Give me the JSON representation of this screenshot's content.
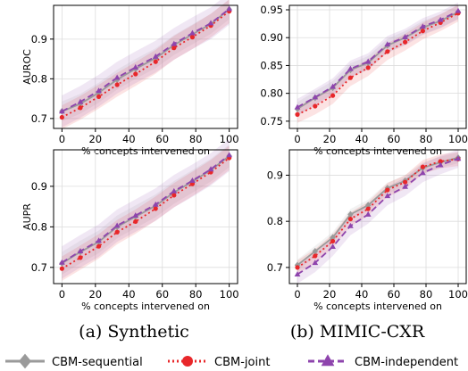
{
  "colors": {
    "sequential": "#9a9a9a",
    "joint": "#e8272a",
    "independent": "#8e44ad",
    "grid": "#dcdcdc"
  },
  "captions": [
    "(a) Synthetic",
    "(b) MIMIC-CXR"
  ],
  "legend": [
    {
      "label": "CBM-sequential",
      "marker": "diamond",
      "dash": "solid",
      "series": "sequential"
    },
    {
      "label": "CBM-joint",
      "marker": "circle",
      "dash": "dotted",
      "series": "joint"
    },
    {
      "label": "CBM-independent",
      "marker": "triangle",
      "dash": "dashed",
      "series": "independent"
    }
  ],
  "chart_data": [
    {
      "type": "line",
      "panel": "top-left",
      "dataset": "Synthetic",
      "xlabel": "% concepts intervened on",
      "ylabel": "AUROC",
      "xlim": [
        -5,
        105
      ],
      "ylim": [
        0.675,
        0.985
      ],
      "xticks": [
        0,
        20,
        40,
        60,
        80,
        100
      ],
      "yticks": [
        0.7,
        0.8,
        0.9
      ],
      "ytick_labels": [
        "0.7",
        "0.8",
        "0.9"
      ],
      "x": [
        0,
        11,
        22,
        33,
        44,
        56,
        67,
        78,
        89,
        100
      ],
      "series": [
        {
          "name": "CBM-sequential",
          "key": "sequential",
          "values": [
            0.718,
            0.737,
            0.765,
            0.798,
            0.825,
            0.852,
            0.885,
            0.912,
            0.938,
            0.975
          ],
          "band": 0.025
        },
        {
          "name": "CBM-joint",
          "key": "joint",
          "values": [
            0.703,
            0.727,
            0.755,
            0.785,
            0.812,
            0.843,
            0.878,
            0.905,
            0.934,
            0.97
          ],
          "band": 0.03
        },
        {
          "name": "CBM-independent",
          "key": "independent",
          "values": [
            0.718,
            0.742,
            0.77,
            0.803,
            0.829,
            0.856,
            0.888,
            0.915,
            0.94,
            0.976
          ],
          "band": 0.04
        }
      ]
    },
    {
      "type": "line",
      "panel": "top-right",
      "dataset": "MIMIC-CXR",
      "xlabel": "% concepts intervened on",
      "ylabel": "",
      "xlim": [
        -5,
        105
      ],
      "ylim": [
        0.737,
        0.958
      ],
      "xticks": [
        0,
        20,
        40,
        60,
        80,
        100
      ],
      "yticks": [
        0.75,
        0.8,
        0.85,
        0.9,
        0.95
      ],
      "ytick_labels": [
        "0.75",
        "0.80",
        "0.85",
        "0.90",
        "0.95"
      ],
      "x": [
        0,
        11,
        22,
        33,
        44,
        56,
        67,
        78,
        89,
        100
      ],
      "series": [
        {
          "name": "CBM-sequential",
          "key": "sequential",
          "values": [
            0.772,
            0.792,
            0.81,
            0.842,
            0.855,
            0.886,
            0.9,
            0.918,
            0.93,
            0.946
          ],
          "band": 0.012
        },
        {
          "name": "CBM-joint",
          "key": "joint",
          "values": [
            0.762,
            0.777,
            0.796,
            0.828,
            0.846,
            0.875,
            0.892,
            0.912,
            0.927,
            0.944
          ],
          "band": 0.015
        },
        {
          "name": "CBM-independent",
          "key": "independent",
          "values": [
            0.775,
            0.793,
            0.812,
            0.844,
            0.857,
            0.888,
            0.901,
            0.92,
            0.932,
            0.948
          ],
          "band": 0.015
        }
      ]
    },
    {
      "type": "line",
      "panel": "bottom-left",
      "dataset": "Synthetic",
      "xlabel": "% concepts intervened on",
      "ylabel": "AUPR",
      "xlim": [
        -5,
        105
      ],
      "ylim": [
        0.66,
        0.99
      ],
      "xticks": [
        0,
        20,
        40,
        60,
        80,
        100
      ],
      "yticks": [
        0.7,
        0.8,
        0.9
      ],
      "ytick_labels": [
        "0.7",
        "0.8",
        "0.9"
      ],
      "x": [
        0,
        11,
        22,
        33,
        44,
        56,
        67,
        78,
        89,
        100
      ],
      "series": [
        {
          "name": "CBM-sequential",
          "key": "sequential",
          "values": [
            0.71,
            0.738,
            0.763,
            0.8,
            0.825,
            0.852,
            0.885,
            0.912,
            0.94,
            0.975
          ],
          "band": 0.028
        },
        {
          "name": "CBM-joint",
          "key": "joint",
          "values": [
            0.697,
            0.724,
            0.752,
            0.787,
            0.813,
            0.845,
            0.878,
            0.906,
            0.935,
            0.97
          ],
          "band": 0.03
        },
        {
          "name": "CBM-independent",
          "key": "independent",
          "values": [
            0.712,
            0.74,
            0.766,
            0.803,
            0.828,
            0.855,
            0.888,
            0.914,
            0.942,
            0.977
          ],
          "band": 0.04
        }
      ]
    },
    {
      "type": "line",
      "panel": "bottom-right",
      "dataset": "MIMIC-CXR",
      "xlabel": "% concepts intervened on",
      "ylabel": "",
      "xlim": [
        -5,
        105
      ],
      "ylim": [
        0.665,
        0.955
      ],
      "xticks": [
        0,
        20,
        40,
        60,
        80,
        100
      ],
      "yticks": [
        0.7,
        0.8,
        0.9
      ],
      "ytick_labels": [
        "0.7",
        "0.8",
        "0.9"
      ],
      "x": [
        0,
        11,
        22,
        33,
        44,
        56,
        67,
        78,
        89,
        100
      ],
      "series": [
        {
          "name": "CBM-sequential",
          "key": "sequential",
          "values": [
            0.705,
            0.735,
            0.765,
            0.815,
            0.835,
            0.872,
            0.888,
            0.916,
            0.928,
            0.938
          ],
          "band": 0.012
        },
        {
          "name": "CBM-joint",
          "key": "joint",
          "values": [
            0.7,
            0.725,
            0.757,
            0.805,
            0.827,
            0.868,
            0.885,
            0.918,
            0.93,
            0.935
          ],
          "band": 0.015
        },
        {
          "name": "CBM-independent",
          "key": "independent",
          "values": [
            0.685,
            0.71,
            0.745,
            0.79,
            0.815,
            0.855,
            0.875,
            0.905,
            0.922,
            0.936
          ],
          "band": 0.02
        }
      ]
    }
  ]
}
